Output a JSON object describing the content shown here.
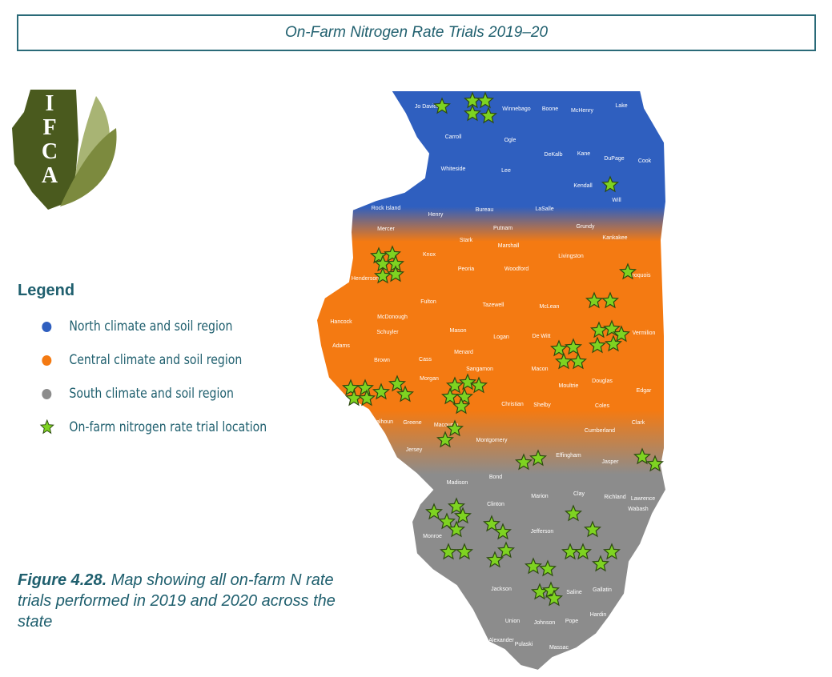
{
  "header": {
    "title": "On-Farm Nitrogen Rate Trials 2019–20"
  },
  "logo": {
    "letters": [
      "I",
      "F",
      "C",
      "A"
    ]
  },
  "legend": {
    "title": "Legend",
    "items": [
      {
        "label": "North climate and soil region",
        "color": "#2f5fbf"
      },
      {
        "label": "Central climate and soil region",
        "color": "#f47a12"
      },
      {
        "label": "South climate and soil region",
        "color": "#8c8c8c"
      },
      {
        "label": "On-farm nitrogen rate trial location",
        "color": "#7ed321"
      }
    ]
  },
  "caption": {
    "label": "Figure 4.28.",
    "text": "Map showing all on-farm N rate trials performed in 2019 and 2020 across the state"
  },
  "counties": [
    "Jo Daviess",
    "Winnebago",
    "Boone",
    "McHenry",
    "Lake",
    "Carroll",
    "Ogle",
    "DeKalb",
    "Kane",
    "DuPage",
    "Cook",
    "Whiteside",
    "Lee",
    "Kendall",
    "Will",
    "Rock Island",
    "Henry",
    "Bureau",
    "LaSalle",
    "Grundy",
    "Putnam",
    "Mercer",
    "Stark",
    "Marshall",
    "Kankakee",
    "Knox",
    "Peoria",
    "Woodford",
    "Livingston",
    "Henderson",
    "Iroquois",
    "Fulton",
    "Tazewell",
    "McLean",
    "Hancock",
    "McDonough",
    "Schuyler",
    "Mason",
    "Logan",
    "De Witt",
    "Vermilion",
    "Adams",
    "Brown",
    "Cass",
    "Menard",
    "Sangamon",
    "Macon",
    "Douglas",
    "Edgar",
    "Morgan",
    "Moultrie",
    "Christian",
    "Shelby",
    "Coles",
    "Calhoun",
    "Greene",
    "Macoupin",
    "Montgomery",
    "Cumberland",
    "Clark",
    "Jersey",
    "Effingham",
    "Jasper",
    "Madison",
    "Bond",
    "Marion",
    "Clay",
    "Richland",
    "Lawrence",
    "Clinton",
    "Wabash",
    "Monroe",
    "Jefferson",
    "Jackson",
    "Saline",
    "Gallatin",
    "Hardin",
    "Union",
    "Johnson",
    "Pope",
    "Alexander",
    "Pulaski",
    "Massac"
  ]
}
